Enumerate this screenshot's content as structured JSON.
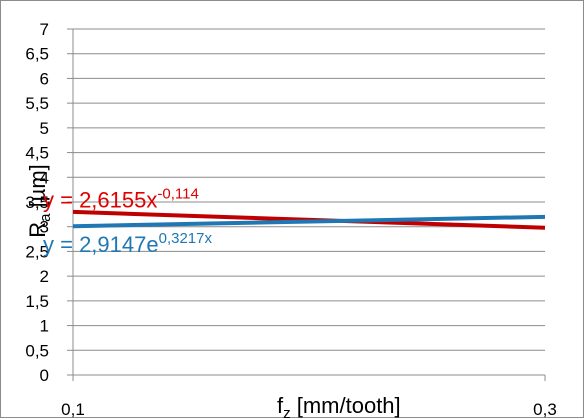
{
  "chart_data": {
    "type": "line",
    "xlabel_main": "f",
    "xlabel_sub": "z",
    "xlabel_rest": " [mm/tooth]",
    "ylabel_main": "R",
    "ylabel_sub": "a",
    "ylabel_rest": " [µm]",
    "x_ticks": [
      "0,1",
      "0,3"
    ],
    "y_ticks": [
      "0",
      "0,5",
      "1",
      "1,5",
      "2",
      "2,5",
      "3",
      "3,5",
      "4",
      "4,5",
      "5",
      "5,5",
      "6",
      "6,5",
      "7"
    ],
    "xlim": [
      0.1,
      0.3
    ],
    "ylim": [
      0,
      7
    ],
    "grid": true,
    "series": [
      {
        "color": "#c00000",
        "x": [
          0.1,
          0.3
        ],
        "y": [
          3.3,
          2.98
        ]
      },
      {
        "color": "#1f77b4",
        "x": [
          0.1,
          0.3
        ],
        "y": [
          3.01,
          3.2
        ]
      }
    ],
    "annotations": [
      {
        "color": "#e00000",
        "prefix": "y = 2,6155x",
        "exponent": "-0,114",
        "anchor_x": 0.1,
        "anchor_y": 3.55
      },
      {
        "color": "#1f77b4",
        "prefix": "y = 2,9147e",
        "exponent": "0,3217x",
        "anchor_x": 0.1,
        "anchor_y": 2.65
      }
    ]
  }
}
